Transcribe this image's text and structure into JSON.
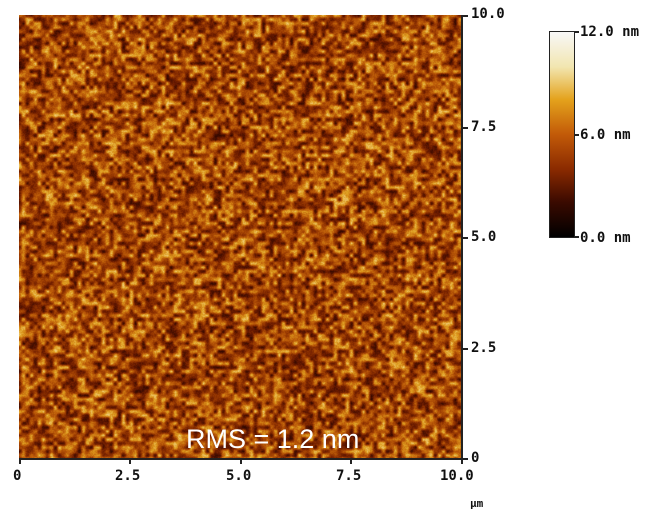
{
  "image": {
    "description_hidden": "",
    "rms_label": "RMS = 1.2 nm"
  },
  "x_axis": {
    "ticks": [
      "0",
      "2.5",
      "5.0",
      "7.5",
      "10.0"
    ],
    "unit": "µm"
  },
  "y_axis": {
    "ticks": [
      "0",
      "2.5",
      "5.0",
      "7.5",
      "10.0"
    ]
  },
  "colorbar": {
    "labels": [
      "12.0 nm",
      "6.0 nm",
      "0.0 nm"
    ],
    "colors": [
      "#000000",
      "#3a0a00",
      "#8a2a00",
      "#c25a08",
      "#e4a21c",
      "#f2e6b0",
      "#f8f8f8"
    ]
  }
}
